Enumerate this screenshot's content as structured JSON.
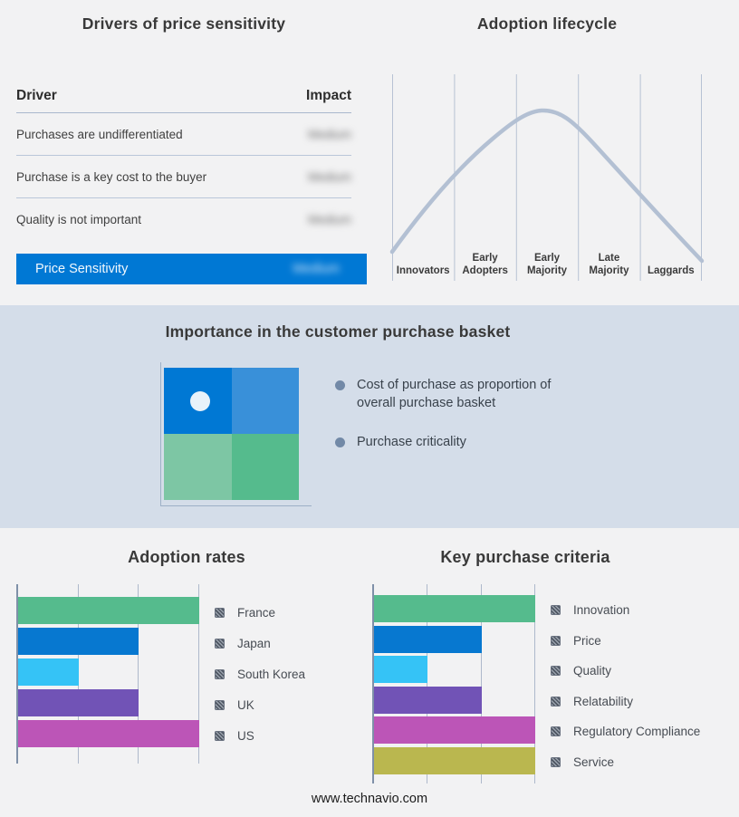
{
  "page": {
    "footer": "www.technavio.com"
  },
  "drivers_panel": {
    "title": "Drivers of price sensitivity",
    "columns": {
      "driver": "Driver",
      "impact": "Impact"
    },
    "rows": [
      {
        "driver": "Purchases are undifferentiated",
        "impact": "Medium",
        "impact_redacted": true
      },
      {
        "driver": "Purchase is a key cost to the buyer",
        "impact": "Medium",
        "impact_redacted": true
      },
      {
        "driver": "Quality is not important",
        "impact": "Medium",
        "impact_redacted": true
      }
    ],
    "highlight_row": {
      "driver": "Price Sensitivity",
      "impact": "Medium",
      "impact_redacted": true
    },
    "accent_color": "#0078d4"
  },
  "lifecycle_panel": {
    "title": "Adoption lifecycle",
    "stages": [
      "Innovators",
      "Early Adopters",
      "Early Majority",
      "Late Majority",
      "Laggards"
    ],
    "curve_color": "#b3c0d3",
    "curve_shape": "bell curve peaking over Early Majority"
  },
  "basket_panel": {
    "title": "Importance in the customer purchase basket",
    "bullets": [
      "Cost of purchase as proportion of overall purchase basket",
      "Purchase criticality"
    ],
    "quadrant_colors": {
      "top_left": "#0078d4",
      "top_right": "#3990d9",
      "bottom_left": "#7dc6a4",
      "bottom_right": "#55bb8d"
    },
    "marker_position": "top-left quadrant",
    "background": "#d4dde9"
  },
  "chart_data": [
    {
      "type": "bar",
      "orientation": "horizontal",
      "title": "Adoption rates",
      "categories": [
        "France",
        "Japan",
        "South Korea",
        "UK",
        "US"
      ],
      "values": [
        3,
        2,
        1,
        2,
        3
      ],
      "xlim": [
        0,
        3
      ],
      "x_gridline_count": 3,
      "xlabel": "",
      "ylabel": "",
      "tick_labels_shown": false,
      "grid": true,
      "legend_position": "right",
      "colors": [
        "#55bb8d",
        "#0778d0",
        "#35c3f6",
        "#7153b6",
        "#bc55b7"
      ]
    },
    {
      "type": "bar",
      "orientation": "horizontal",
      "title": "Key purchase criteria",
      "categories": [
        "Innovation",
        "Price",
        "Quality",
        "Relatability",
        "Regulatory Compliance",
        "Service"
      ],
      "values": [
        3,
        2,
        1,
        2,
        3,
        3
      ],
      "xlim": [
        0,
        3
      ],
      "x_gridline_count": 3,
      "xlabel": "",
      "ylabel": "",
      "tick_labels_shown": false,
      "grid": true,
      "legend_position": "right",
      "colors": [
        "#55bb8d",
        "#0778d0",
        "#35c3f6",
        "#7153b6",
        "#bc55b7",
        "#bab74f"
      ]
    }
  ]
}
